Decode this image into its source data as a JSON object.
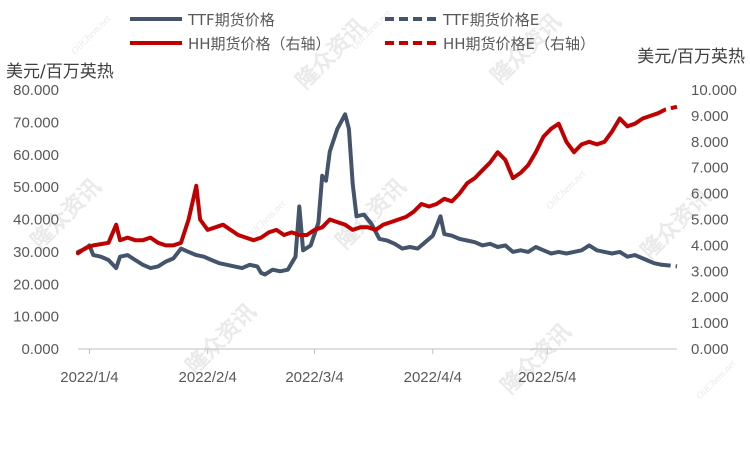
{
  "chart_data": {
    "type": "line",
    "left_unit": "美元/百万英热",
    "right_unit": "美元/百万英热",
    "left_axis": {
      "min": 0,
      "max": 80,
      "step": 10,
      "tick_labels": [
        "0.000",
        "10.000",
        "20.000",
        "30.000",
        "40.000",
        "50.000",
        "60.000",
        "70.000",
        "80.000"
      ]
    },
    "right_axis": {
      "min": 0,
      "max": 10,
      "step": 1,
      "tick_labels": [
        "0.000",
        "1.000",
        "2.000",
        "3.000",
        "4.000",
        "5.000",
        "6.000",
        "7.000",
        "8.000",
        "9.000",
        "10.000"
      ]
    },
    "x_labels": [
      {
        "date": "2022-01-04",
        "label": "2022/1/4"
      },
      {
        "date": "2022-02-04",
        "label": "2022/2/4"
      },
      {
        "date": "2022-03-04",
        "label": "2022/3/4"
      },
      {
        "date": "2022-04-04",
        "label": "2022/4/4"
      },
      {
        "date": "2022-05-04",
        "label": "2022/5/4"
      }
    ],
    "x_range": [
      "2022-01-01",
      "2022-06-07"
    ],
    "legend": {
      "placement": "top",
      "entries": [
        "TTF期货价格",
        "TTF期货价格E",
        "HH期货价格（右轴）",
        "HH期货价格E（右轴）"
      ]
    },
    "series": [
      {
        "name": "TTF期货价格",
        "axis": "left",
        "color": "#44546a",
        "style": "solid",
        "points": [
          [
            "2022-01-01",
            30.0
          ],
          [
            "2022-01-03",
            31.0
          ],
          [
            "2022-01-04",
            32.0
          ],
          [
            "2022-01-05",
            29.0
          ],
          [
            "2022-01-07",
            28.5
          ],
          [
            "2022-01-09",
            27.5
          ],
          [
            "2022-01-11",
            25.0
          ],
          [
            "2022-01-12",
            28.5
          ],
          [
            "2022-01-14",
            29.0
          ],
          [
            "2022-01-16",
            27.5
          ],
          [
            "2022-01-18",
            26.0
          ],
          [
            "2022-01-20",
            25.0
          ],
          [
            "2022-01-22",
            25.5
          ],
          [
            "2022-01-24",
            27.0
          ],
          [
            "2022-01-26",
            28.0
          ],
          [
            "2022-01-28",
            31.0
          ],
          [
            "2022-01-30",
            30.0
          ],
          [
            "2022-02-01",
            29.0
          ],
          [
            "2022-02-03",
            28.5
          ],
          [
            "2022-02-05",
            27.5
          ],
          [
            "2022-02-07",
            26.5
          ],
          [
            "2022-02-09",
            26.0
          ],
          [
            "2022-02-11",
            25.5
          ],
          [
            "2022-02-13",
            25.0
          ],
          [
            "2022-02-15",
            26.0
          ],
          [
            "2022-02-17",
            25.5
          ],
          [
            "2022-02-18",
            23.5
          ],
          [
            "2022-02-19",
            23.0
          ],
          [
            "2022-02-21",
            24.5
          ],
          [
            "2022-02-23",
            24.0
          ],
          [
            "2022-02-25",
            24.5
          ],
          [
            "2022-02-27",
            28.5
          ],
          [
            "2022-02-28",
            44.0
          ],
          [
            "2022-03-01",
            30.5
          ],
          [
            "2022-03-03",
            32.0
          ],
          [
            "2022-03-05",
            39.0
          ],
          [
            "2022-03-06",
            53.5
          ],
          [
            "2022-03-07",
            52.0
          ],
          [
            "2022-03-08",
            61.0
          ],
          [
            "2022-03-10",
            68.0
          ],
          [
            "2022-03-12",
            72.5
          ],
          [
            "2022-03-13",
            68.0
          ],
          [
            "2022-03-14",
            51.0
          ],
          [
            "2022-03-15",
            41.0
          ],
          [
            "2022-03-17",
            41.5
          ],
          [
            "2022-03-19",
            38.5
          ],
          [
            "2022-03-21",
            34.0
          ],
          [
            "2022-03-23",
            33.5
          ],
          [
            "2022-03-25",
            32.5
          ],
          [
            "2022-03-27",
            31.0
          ],
          [
            "2022-03-29",
            31.5
          ],
          [
            "2022-03-31",
            31.0
          ],
          [
            "2022-04-02",
            33.0
          ],
          [
            "2022-04-04",
            35.0
          ],
          [
            "2022-04-06",
            41.0
          ],
          [
            "2022-04-07",
            35.5
          ],
          [
            "2022-04-09",
            35.0
          ],
          [
            "2022-04-11",
            34.0
          ],
          [
            "2022-04-13",
            33.5
          ],
          [
            "2022-04-15",
            33.0
          ],
          [
            "2022-04-17",
            32.0
          ],
          [
            "2022-04-19",
            32.5
          ],
          [
            "2022-04-21",
            31.5
          ],
          [
            "2022-04-23",
            32.0
          ],
          [
            "2022-04-25",
            30.0
          ],
          [
            "2022-04-27",
            30.5
          ],
          [
            "2022-04-29",
            30.0
          ],
          [
            "2022-05-01",
            31.5
          ],
          [
            "2022-05-03",
            30.5
          ],
          [
            "2022-05-05",
            29.5
          ],
          [
            "2022-05-07",
            30.0
          ],
          [
            "2022-05-09",
            29.5
          ],
          [
            "2022-05-11",
            30.0
          ],
          [
            "2022-05-13",
            30.5
          ],
          [
            "2022-05-15",
            32.0
          ],
          [
            "2022-05-17",
            30.5
          ],
          [
            "2022-05-19",
            30.0
          ],
          [
            "2022-05-21",
            29.5
          ],
          [
            "2022-05-23",
            30.0
          ],
          [
            "2022-05-25",
            28.5
          ],
          [
            "2022-05-27",
            29.0
          ],
          [
            "2022-05-29",
            28.0
          ],
          [
            "2022-05-31",
            27.0
          ],
          [
            "2022-06-01",
            26.5
          ],
          [
            "2022-06-03",
            26.0
          ]
        ]
      },
      {
        "name": "TTF期货价格E",
        "axis": "left",
        "color": "#44546a",
        "style": "dashed",
        "points": [
          [
            "2022-06-03",
            26.0
          ],
          [
            "2022-06-05",
            25.8
          ],
          [
            "2022-06-07",
            25.5
          ]
        ]
      },
      {
        "name": "HH期货价格（右轴）",
        "axis": "right",
        "color": "#c00000",
        "style": "solid",
        "points": [
          [
            "2022-01-01",
            3.7
          ],
          [
            "2022-01-03",
            3.9
          ],
          [
            "2022-01-05",
            4.0
          ],
          [
            "2022-01-07",
            4.05
          ],
          [
            "2022-01-09",
            4.1
          ],
          [
            "2022-01-11",
            4.8
          ],
          [
            "2022-01-12",
            4.2
          ],
          [
            "2022-01-14",
            4.3
          ],
          [
            "2022-01-16",
            4.2
          ],
          [
            "2022-01-18",
            4.2
          ],
          [
            "2022-01-20",
            4.3
          ],
          [
            "2022-01-22",
            4.1
          ],
          [
            "2022-01-24",
            4.0
          ],
          [
            "2022-01-26",
            4.0
          ],
          [
            "2022-01-28",
            4.1
          ],
          [
            "2022-01-30",
            5.0
          ],
          [
            "2022-02-01",
            6.3
          ],
          [
            "2022-02-02",
            5.0
          ],
          [
            "2022-02-04",
            4.6
          ],
          [
            "2022-02-06",
            4.7
          ],
          [
            "2022-02-08",
            4.8
          ],
          [
            "2022-02-10",
            4.6
          ],
          [
            "2022-02-12",
            4.4
          ],
          [
            "2022-02-14",
            4.3
          ],
          [
            "2022-02-16",
            4.2
          ],
          [
            "2022-02-18",
            4.3
          ],
          [
            "2022-02-20",
            4.5
          ],
          [
            "2022-02-22",
            4.6
          ],
          [
            "2022-02-24",
            4.4
          ],
          [
            "2022-02-26",
            4.5
          ],
          [
            "2022-02-28",
            4.4
          ],
          [
            "2022-03-02",
            4.4
          ],
          [
            "2022-03-04",
            4.6
          ],
          [
            "2022-03-06",
            4.7
          ],
          [
            "2022-03-08",
            5.0
          ],
          [
            "2022-03-10",
            4.9
          ],
          [
            "2022-03-12",
            4.8
          ],
          [
            "2022-03-14",
            4.6
          ],
          [
            "2022-03-16",
            4.7
          ],
          [
            "2022-03-18",
            4.7
          ],
          [
            "2022-03-20",
            4.6
          ],
          [
            "2022-03-22",
            4.8
          ],
          [
            "2022-03-24",
            4.9
          ],
          [
            "2022-03-26",
            5.0
          ],
          [
            "2022-03-28",
            5.1
          ],
          [
            "2022-03-30",
            5.3
          ],
          [
            "2022-04-01",
            5.6
          ],
          [
            "2022-04-03",
            5.5
          ],
          [
            "2022-04-05",
            5.6
          ],
          [
            "2022-04-07",
            5.8
          ],
          [
            "2022-04-09",
            5.7
          ],
          [
            "2022-04-11",
            6.0
          ],
          [
            "2022-04-13",
            6.4
          ],
          [
            "2022-04-15",
            6.6
          ],
          [
            "2022-04-17",
            6.9
          ],
          [
            "2022-04-19",
            7.2
          ],
          [
            "2022-04-21",
            7.6
          ],
          [
            "2022-04-23",
            7.3
          ],
          [
            "2022-04-25",
            6.6
          ],
          [
            "2022-04-27",
            6.8
          ],
          [
            "2022-04-29",
            7.1
          ],
          [
            "2022-05-01",
            7.6
          ],
          [
            "2022-05-03",
            8.2
          ],
          [
            "2022-05-05",
            8.5
          ],
          [
            "2022-05-07",
            8.7
          ],
          [
            "2022-05-09",
            8.0
          ],
          [
            "2022-05-11",
            7.6
          ],
          [
            "2022-05-13",
            7.9
          ],
          [
            "2022-05-15",
            8.0
          ],
          [
            "2022-05-17",
            7.9
          ],
          [
            "2022-05-19",
            8.0
          ],
          [
            "2022-05-21",
            8.4
          ],
          [
            "2022-05-23",
            8.9
          ],
          [
            "2022-05-25",
            8.6
          ],
          [
            "2022-05-27",
            8.7
          ],
          [
            "2022-05-29",
            8.9
          ],
          [
            "2022-05-31",
            9.0
          ],
          [
            "2022-06-02",
            9.1
          ]
        ]
      },
      {
        "name": "HH期货价格E（右轴）",
        "axis": "right",
        "color": "#c00000",
        "style": "dashed",
        "points": [
          [
            "2022-06-02",
            9.1
          ],
          [
            "2022-06-04",
            9.25
          ],
          [
            "2022-06-07",
            9.35
          ]
        ]
      }
    ]
  },
  "watermarks": [
    {
      "text": "隆众资讯"
    },
    {
      "text": "OilChem.net"
    }
  ]
}
